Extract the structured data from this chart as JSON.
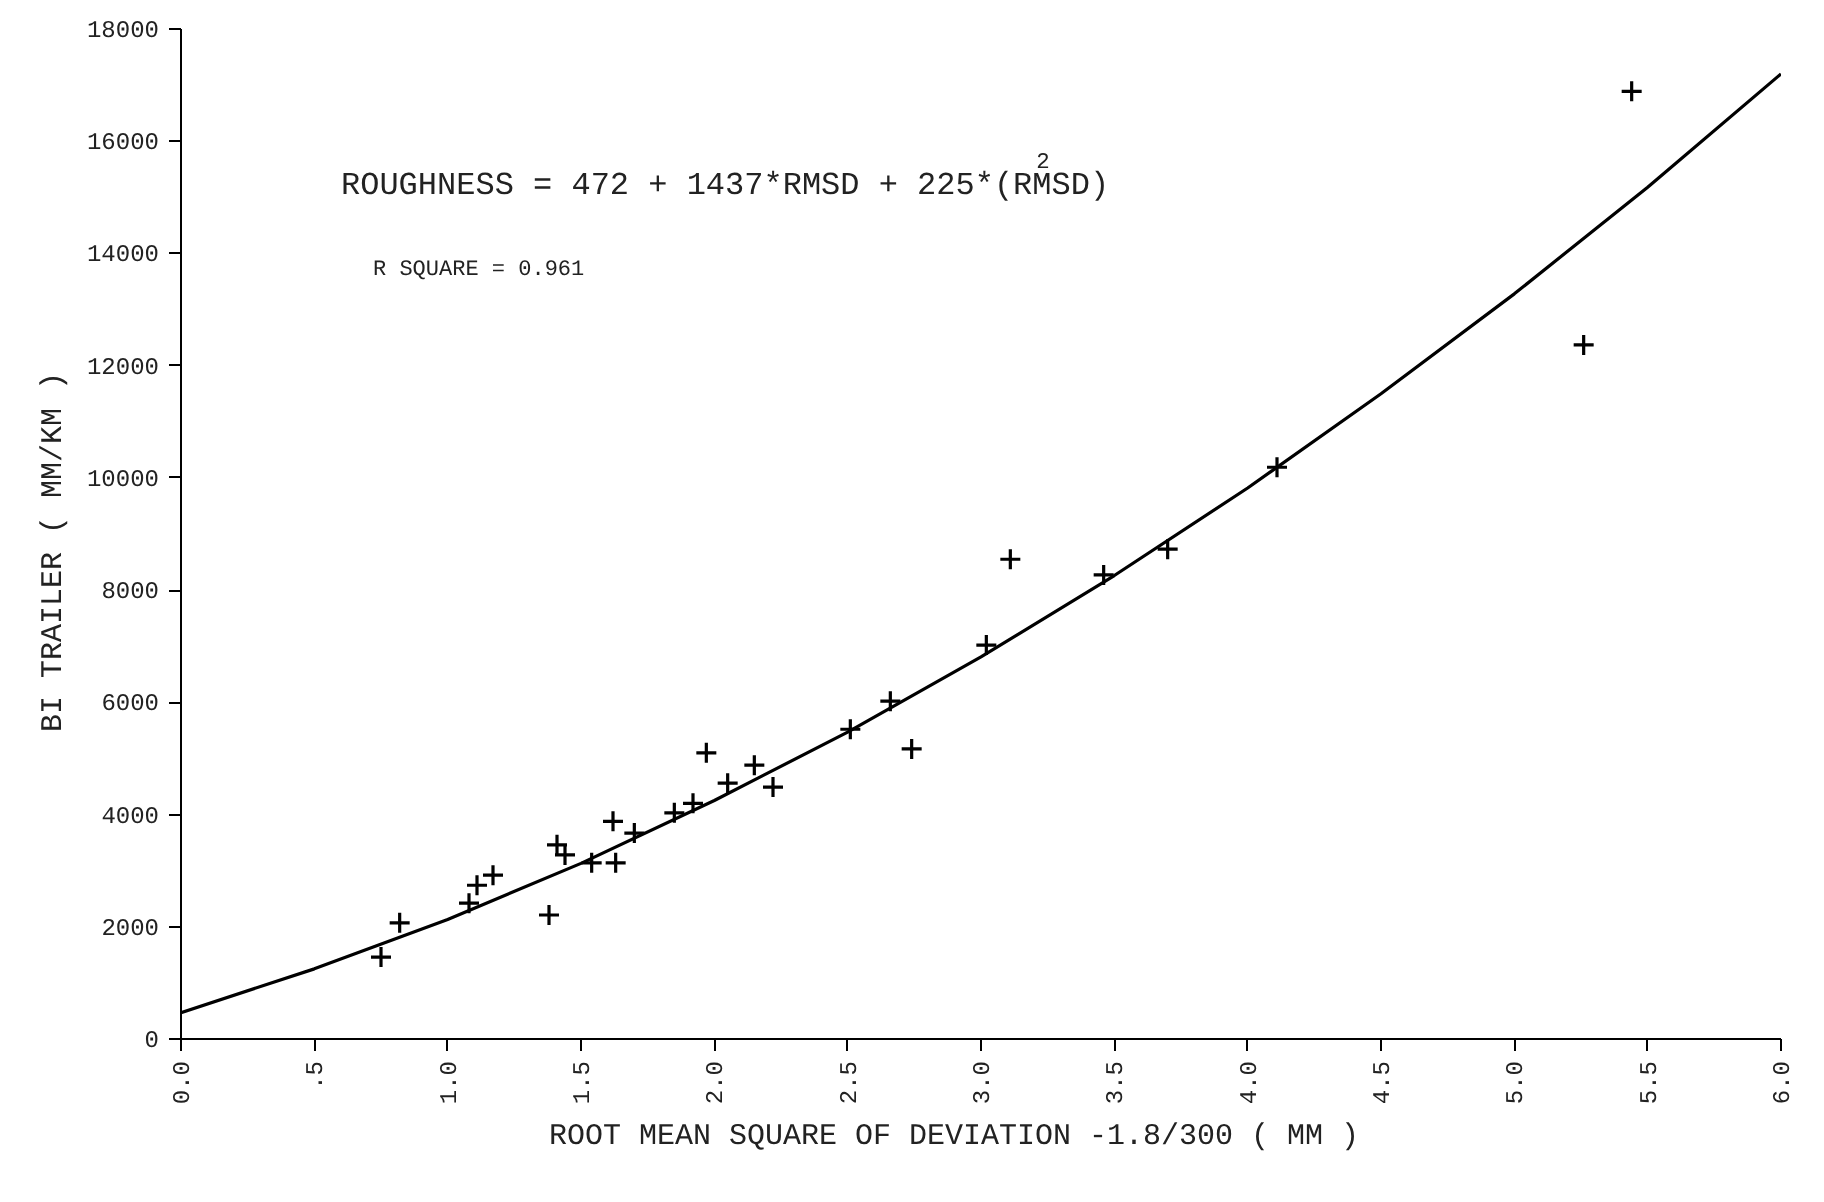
{
  "chart_data": {
    "type": "scatter",
    "xlabel": "ROOT MEAN SQUARE OF DEVIATION  -1.8/300   ( MM )",
    "ylabel": "BI TRAILER   ( MM/KM )",
    "annotations": [
      "ROUGHNESS = 472 + 1437*RMSD  + 225*(RMSD)$^{2}$",
      "R SQUARE = 0.961"
    ],
    "xlim": [
      0,
      6
    ],
    "ylim": [
      0,
      18000
    ],
    "xticks": [
      {
        "value": 0,
        "label": "0.0"
      },
      {
        "value": 0.5,
        "label": ".5"
      },
      {
        "value": 1,
        "label": "1.0"
      },
      {
        "value": 1.5,
        "label": "1.5"
      },
      {
        "value": 2,
        "label": "2.0"
      },
      {
        "value": 2.5,
        "label": "2.5"
      },
      {
        "value": 3,
        "label": "3.0"
      },
      {
        "value": 3.5,
        "label": "3.5"
      },
      {
        "value": 4,
        "label": "4.0"
      },
      {
        "value": 4.5,
        "label": "4.5"
      },
      {
        "value": 5,
        "label": "5.0"
      },
      {
        "value": 5.5,
        "label": "5.5"
      },
      {
        "value": 6,
        "label": "6.0"
      }
    ],
    "yticks": [
      0,
      2000,
      4000,
      6000,
      8000,
      10000,
      12000,
      14000,
      16000,
      18000
    ],
    "grid": false,
    "series": [
      {
        "marker": "cross",
        "color": "#000000",
        "x": [
          0.75,
          0.82,
          1.08,
          1.11,
          1.17,
          1.38,
          1.41,
          1.44,
          1.54,
          1.62,
          1.63,
          1.7,
          1.85,
          1.92,
          1.97,
          2.05,
          2.15,
          2.22,
          2.51,
          2.66,
          2.74,
          3.02,
          3.11,
          3.46,
          3.7,
          4.11,
          5.26,
          5.44
        ],
        "values": [
          1460,
          2070,
          2420,
          2740,
          2920,
          2210,
          3460,
          3280,
          3140,
          3880,
          3140,
          3670,
          4030,
          4200,
          5100,
          4560,
          4880,
          4490,
          5520,
          6020,
          5170,
          7020,
          8550,
          8270,
          8730,
          10190,
          12370,
          16890
        ]
      },
      {
        "type": "line",
        "color": "#000000",
        "line_style": "solid",
        "x": [
          0,
          0.5,
          1,
          1.5,
          2,
          2.5,
          3,
          3.5,
          4,
          4.5,
          5,
          5.5,
          6
        ],
        "values": [
          470,
          1250,
          2130,
          3130,
          4250,
          5470,
          6810,
          8260,
          9820,
          11500,
          13280,
          15180,
          17200
        ]
      }
    ]
  }
}
